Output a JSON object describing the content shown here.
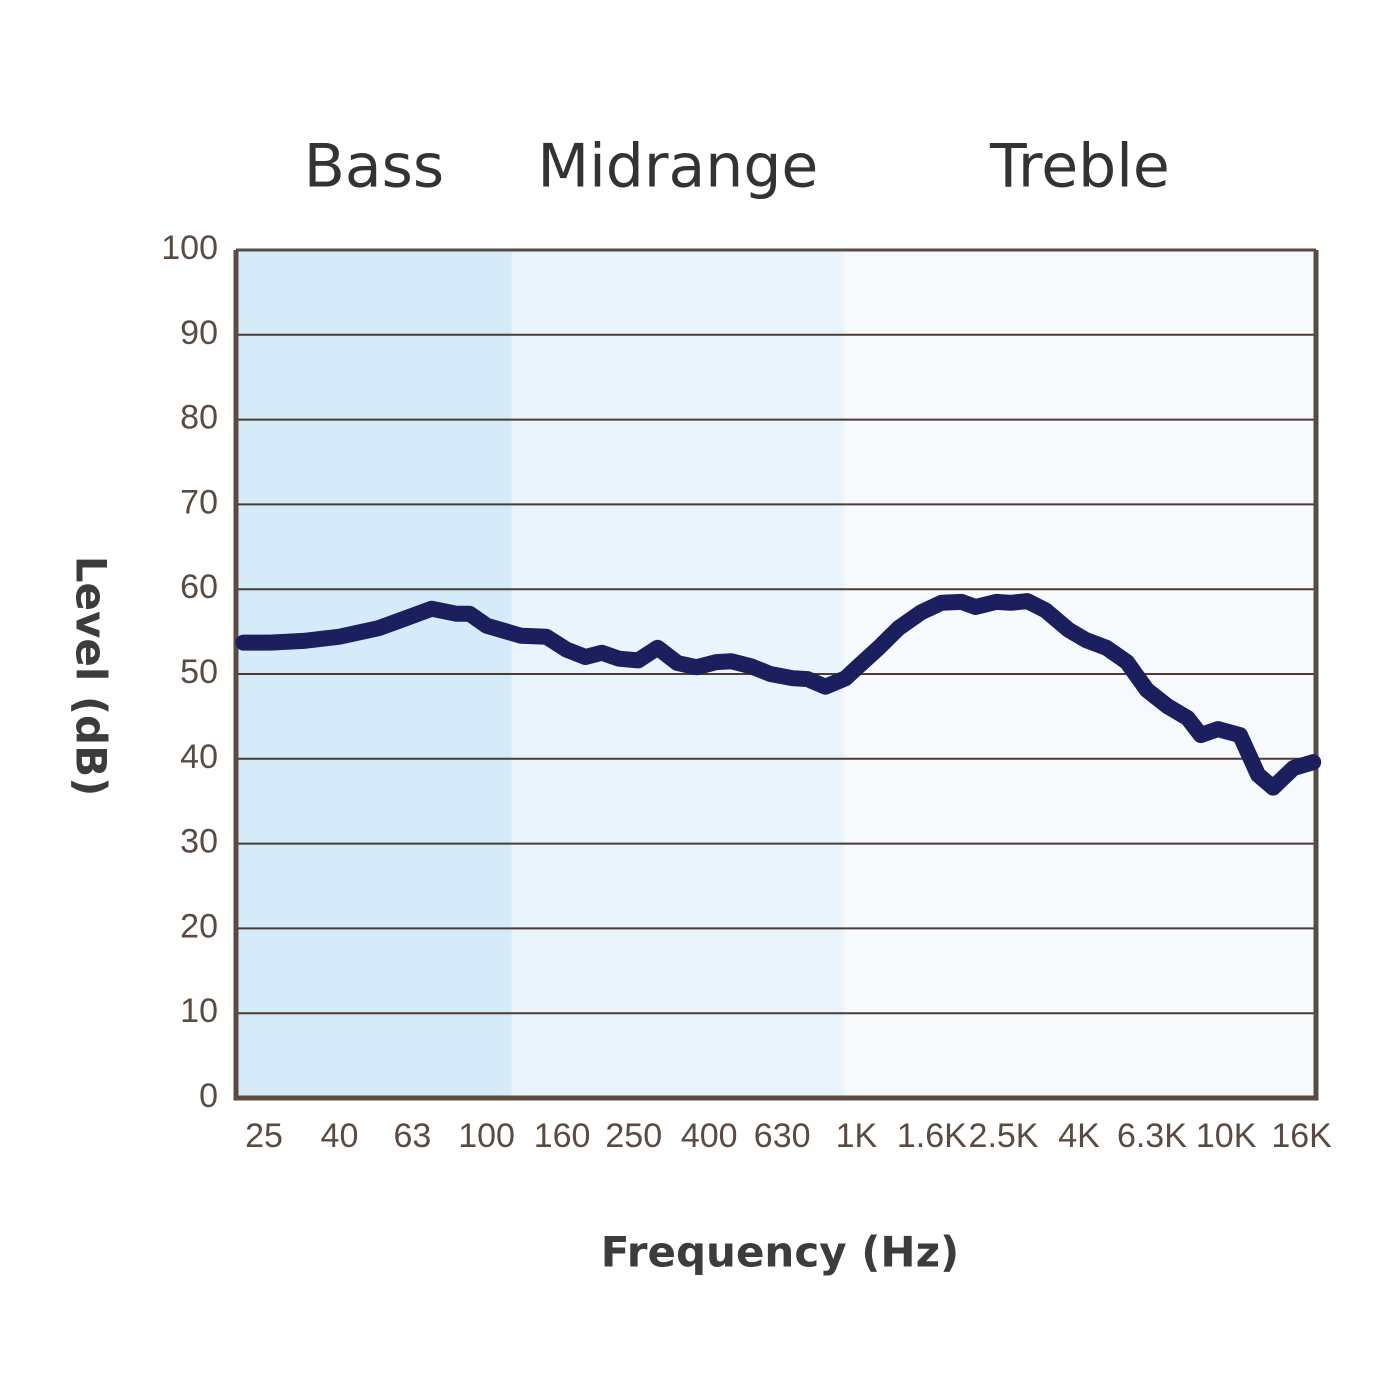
{
  "chart_data": {
    "type": "line",
    "x_label": "Frequency (Hz)",
    "y_label": "Level (dB)",
    "x_scale": "log",
    "xlim": [
      21,
      17500
    ],
    "ylim": [
      0,
      100
    ],
    "xticks": [
      25,
      40,
      63,
      100,
      160,
      250,
      400,
      630,
      {
        "value": 1000,
        "label": "1K"
      },
      {
        "value": 1600,
        "label": "1.6K"
      },
      {
        "value": 2500,
        "label": "2.5K"
      },
      {
        "value": 4000,
        "label": "4K"
      },
      {
        "value": 6300,
        "label": "6.3K"
      },
      {
        "value": 10000,
        "label": "10K"
      },
      {
        "value": 16000,
        "label": "16K"
      }
    ],
    "yticks": [
      0,
      10,
      20,
      30,
      40,
      50,
      60,
      70,
      80,
      90,
      100
    ],
    "grid": true,
    "regions": [
      {
        "label": "Bass",
        "from": 21,
        "to": 117,
        "color": "#d6ebfa"
      },
      {
        "label": "Midrange",
        "from": 117,
        "to": 925,
        "color": "#eaf4fc"
      },
      {
        "label": "Treble",
        "from": 925,
        "to": 17500,
        "color": "#f6fafd"
      }
    ],
    "color": "#1b1f5e",
    "x": [
      22,
      26,
      32,
      40,
      51,
      59,
      71,
      83,
      90,
      100,
      124,
      145,
      164,
      185,
      205,
      228,
      257,
      290,
      328,
      369,
      418,
      459,
      520,
      585,
      672,
      738,
      824,
      935,
      1000,
      1150,
      1300,
      1500,
      1700,
      1925,
      2100,
      2390,
      2620,
      2900,
      3250,
      3750,
      4180,
      4740,
      5390,
      6110,
      6940,
      7870,
      8540,
      9510,
      10900,
      12200,
      13400,
      15200,
      17200
    ],
    "values": [
      53.7,
      53.7,
      53.9,
      54.4,
      55.4,
      56.4,
      57.7,
      57.1,
      57.1,
      55.7,
      54.5,
      54.4,
      52.9,
      52.0,
      52.5,
      51.8,
      51.6,
      53.1,
      51.3,
      50.8,
      51.4,
      51.5,
      50.9,
      50.0,
      49.5,
      49.4,
      48.5,
      49.5,
      50.7,
      53.1,
      55.4,
      57.3,
      58.4,
      58.5,
      57.9,
      58.5,
      58.4,
      58.6,
      57.5,
      55.2,
      54.0,
      53.1,
      51.4,
      48.1,
      46.2,
      44.8,
      42.8,
      43.5,
      42.8,
      38.1,
      36.6,
      38.9,
      39.6
    ]
  }
}
